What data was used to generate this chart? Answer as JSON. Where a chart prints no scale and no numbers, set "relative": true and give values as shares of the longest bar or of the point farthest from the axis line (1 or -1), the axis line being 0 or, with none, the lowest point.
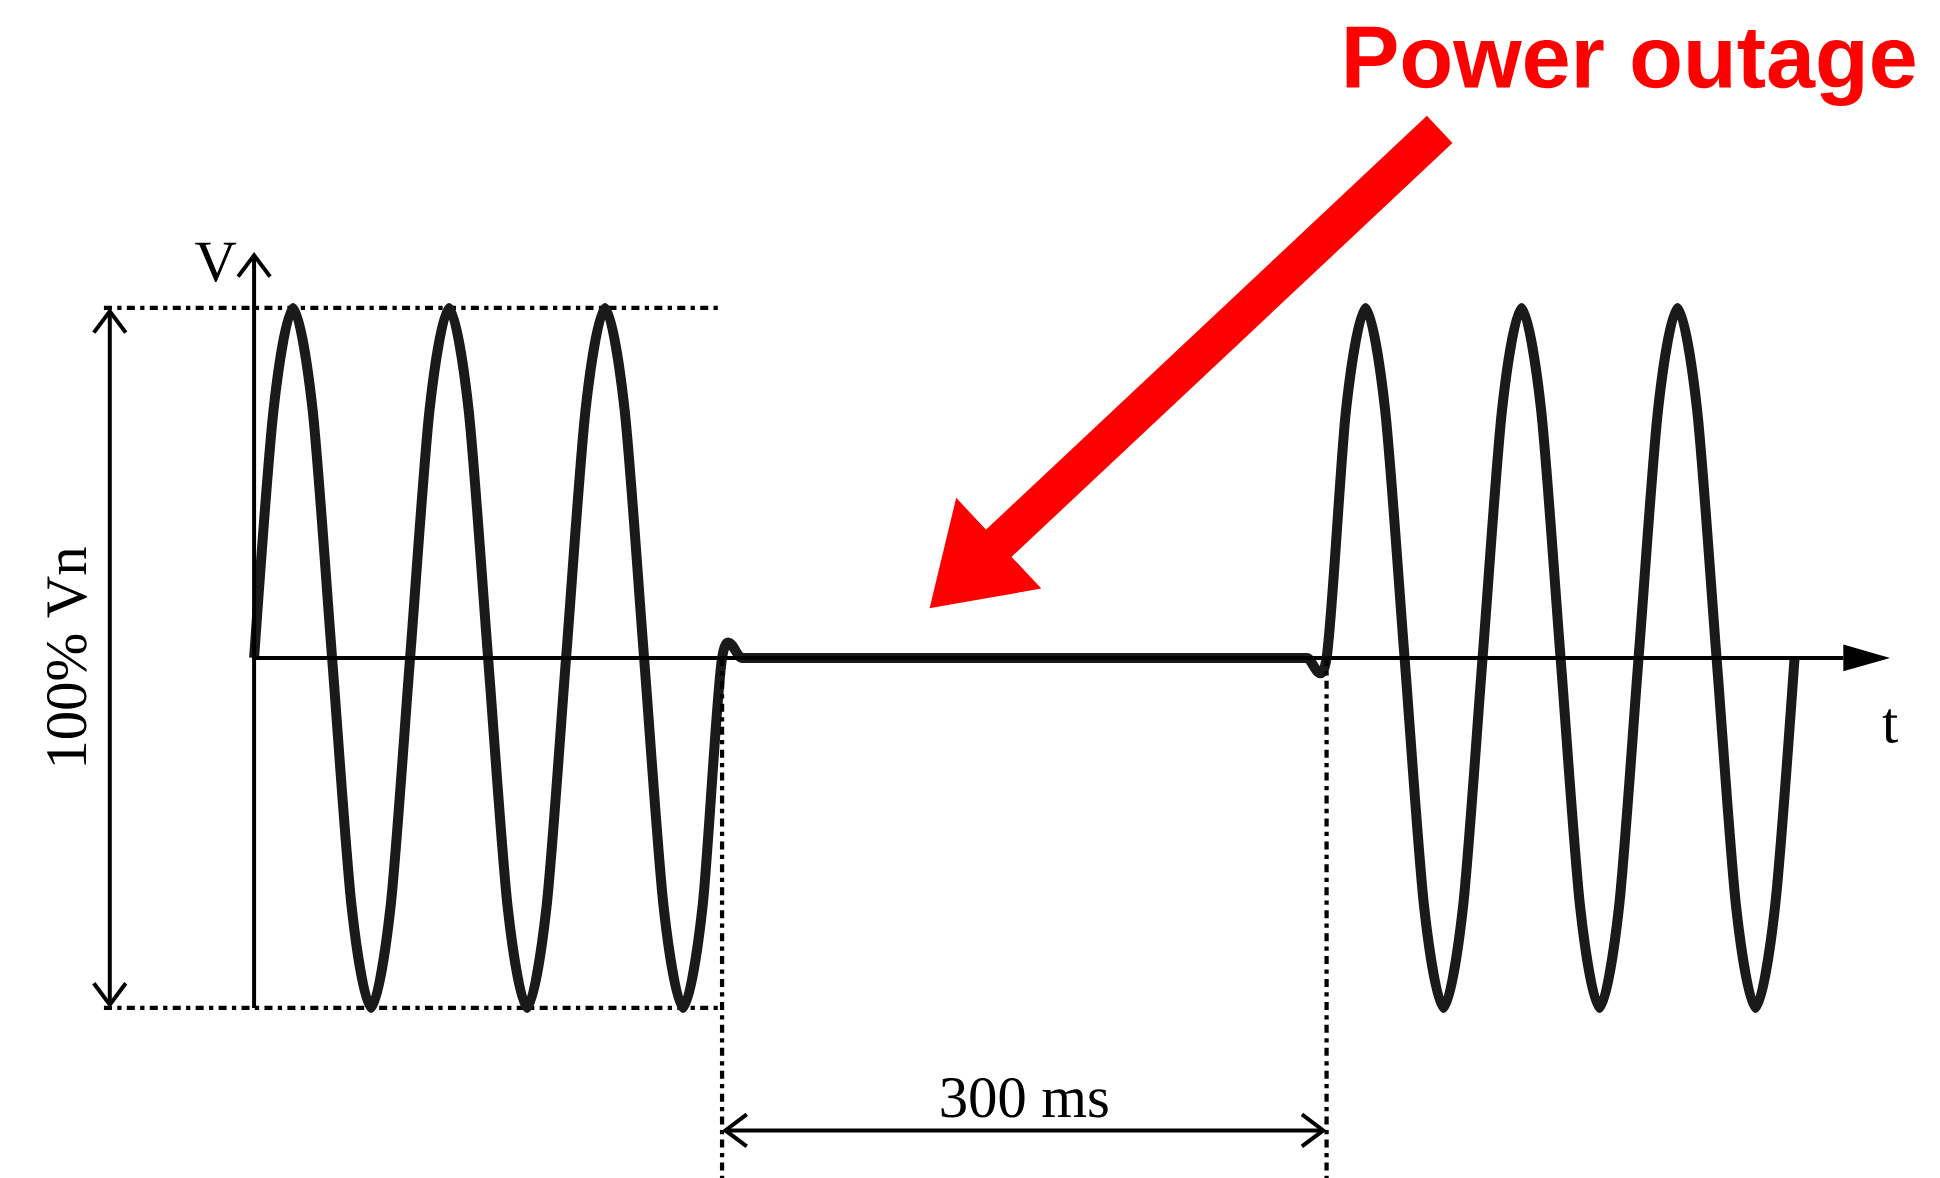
{
  "chart_data": {
    "type": "line",
    "relative": true,
    "xlabel": "t",
    "ylabel": "V",
    "categories": [
      null,
      null,
      null,
      null,
      null,
      null,
      null,
      null,
      null,
      null,
      null,
      null,
      null,
      null,
      null,
      null,
      null,
      null,
      null,
      null,
      null,
      null,
      null,
      null,
      null,
      null,
      null,
      null,
      null,
      null,
      null,
      null,
      null,
      null,
      null,
      null,
      null,
      null,
      null,
      null,
      null,
      null,
      null,
      null,
      null,
      null,
      null,
      null,
      null,
      null,
      null,
      null,
      null,
      null,
      null,
      null,
      null,
      null,
      null,
      null,
      null,
      null,
      null,
      null,
      null,
      null,
      null,
      null,
      null,
      null,
      null,
      null,
      null,
      null,
      null,
      null,
      null,
      null,
      null,
      null
    ],
    "series": [
      {
        "color": "#1a1a1a",
        "values": [
          0,
          0.71,
          1,
          0.71,
          0,
          -0.71,
          -1,
          -0.71,
          0,
          0.71,
          1,
          0.71,
          0,
          -0.71,
          -1,
          -0.71,
          0,
          0.71,
          1,
          0.71,
          0,
          -0.71,
          -1,
          -0.71,
          0,
          0,
          0,
          0,
          0,
          0,
          0,
          0,
          0,
          0,
          0,
          0,
          0,
          0,
          0,
          0,
          0,
          0,
          0,
          0,
          0,
          0,
          0,
          0,
          0,
          0,
          0,
          0,
          0,
          0,
          0,
          0,
          0.71,
          1,
          0.71,
          0,
          -0.71,
          -1,
          -0.71,
          0,
          0.71,
          1,
          0.71,
          0,
          -0.71,
          -1,
          -0.71,
          0,
          0.71,
          1,
          0.71,
          0,
          -0.71,
          -1,
          -0.71,
          0
        ]
      }
    ],
    "ref_lines": [
      {
        "axis": "y",
        "value": 1,
        "line_style": "dashed"
      },
      {
        "axis": "y",
        "value": -1,
        "line_style": "dashed"
      }
    ],
    "annotations": [
      "100% Vn",
      "300 ms",
      "Power outage"
    ]
  }
}
